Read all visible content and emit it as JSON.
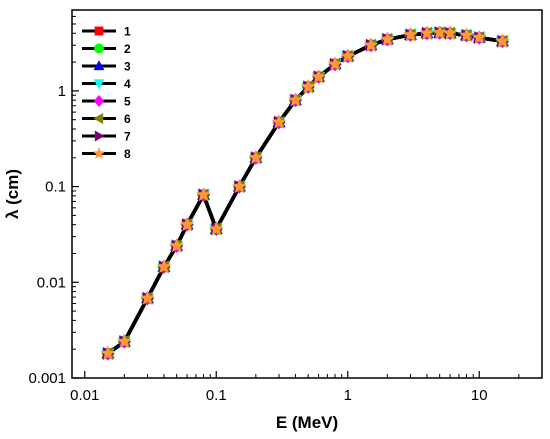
{
  "chart_data": {
    "type": "line",
    "title": "",
    "xlabel": "E (MeV)",
    "ylabel": "λ (cm)",
    "xscale": "log",
    "yscale": "log",
    "xlim": [
      0.008,
      30
    ],
    "ylim": [
      0.001,
      7
    ],
    "xticks": [
      {
        "value": 0.01,
        "label": "0.01"
      },
      {
        "value": 0.1,
        "label": "0.1"
      },
      {
        "value": 1,
        "label": "1"
      },
      {
        "value": 10,
        "label": "10"
      }
    ],
    "yticks": [
      {
        "value": 0.001,
        "label": "0.001"
      },
      {
        "value": 0.01,
        "label": "0.01"
      },
      {
        "value": 0.1,
        "label": "0.1"
      },
      {
        "value": 1,
        "label": "1"
      }
    ],
    "legend_position": "top-left",
    "line_color": "#000000",
    "x": [
      0.015,
      0.02,
      0.03,
      0.04,
      0.05,
      0.06,
      0.08,
      0.1,
      0.15,
      0.2,
      0.3,
      0.4,
      0.5,
      0.6,
      0.8,
      1,
      1.5,
      2,
      3,
      4,
      5,
      6,
      8,
      10,
      15
    ],
    "series": [
      {
        "name": "1",
        "marker": "square",
        "color": "#ff0000",
        "values": [
          0.0018,
          0.0024,
          0.0068,
          0.0145,
          0.024,
          0.04,
          0.082,
          0.036,
          0.1,
          0.2,
          0.47,
          0.8,
          1.1,
          1.4,
          1.9,
          2.3,
          3.0,
          3.45,
          3.85,
          4.0,
          4.05,
          4.0,
          3.8,
          3.6,
          3.3
        ]
      },
      {
        "name": "2",
        "marker": "circle",
        "color": "#00ff00",
        "values": [
          0.0018,
          0.0024,
          0.0068,
          0.0145,
          0.024,
          0.04,
          0.082,
          0.036,
          0.1,
          0.2,
          0.47,
          0.8,
          1.1,
          1.4,
          1.9,
          2.3,
          3.0,
          3.45,
          3.85,
          4.0,
          4.05,
          4.0,
          3.8,
          3.6,
          3.3
        ]
      },
      {
        "name": "3",
        "marker": "triangle-up",
        "color": "#0000ff",
        "values": [
          0.0018,
          0.0024,
          0.0068,
          0.0145,
          0.024,
          0.04,
          0.082,
          0.036,
          0.1,
          0.2,
          0.47,
          0.8,
          1.1,
          1.4,
          1.9,
          2.3,
          3.0,
          3.45,
          3.85,
          4.0,
          4.05,
          4.0,
          3.8,
          3.6,
          3.3
        ]
      },
      {
        "name": "4",
        "marker": "triangle-down",
        "color": "#00ffff",
        "values": [
          0.0018,
          0.0024,
          0.0068,
          0.0145,
          0.024,
          0.04,
          0.082,
          0.036,
          0.1,
          0.2,
          0.47,
          0.8,
          1.1,
          1.4,
          1.9,
          2.3,
          3.0,
          3.45,
          3.85,
          4.0,
          4.05,
          4.0,
          3.8,
          3.6,
          3.3
        ]
      },
      {
        "name": "5",
        "marker": "diamond",
        "color": "#ff00ff",
        "values": [
          0.0018,
          0.0024,
          0.0068,
          0.0145,
          0.024,
          0.04,
          0.082,
          0.036,
          0.1,
          0.2,
          0.47,
          0.8,
          1.1,
          1.4,
          1.9,
          2.3,
          3.0,
          3.45,
          3.85,
          4.0,
          4.05,
          4.0,
          3.8,
          3.6,
          3.3
        ]
      },
      {
        "name": "6",
        "marker": "triangle-left",
        "color": "#808000",
        "values": [
          0.0018,
          0.0024,
          0.0068,
          0.0145,
          0.024,
          0.04,
          0.082,
          0.036,
          0.1,
          0.2,
          0.47,
          0.8,
          1.1,
          1.4,
          1.9,
          2.3,
          3.0,
          3.45,
          3.85,
          4.0,
          4.05,
          4.0,
          3.8,
          3.6,
          3.3
        ]
      },
      {
        "name": "7",
        "marker": "triangle-right",
        "color": "#800080",
        "values": [
          0.0018,
          0.0024,
          0.0068,
          0.0145,
          0.024,
          0.04,
          0.082,
          0.036,
          0.1,
          0.2,
          0.47,
          0.8,
          1.1,
          1.4,
          1.9,
          2.3,
          3.0,
          3.45,
          3.85,
          4.0,
          4.05,
          4.0,
          3.8,
          3.6,
          3.3
        ]
      },
      {
        "name": "8",
        "marker": "star",
        "color": "#ff9933",
        "values": [
          0.0018,
          0.0024,
          0.0068,
          0.0145,
          0.024,
          0.04,
          0.082,
          0.036,
          0.1,
          0.2,
          0.47,
          0.8,
          1.1,
          1.4,
          1.9,
          2.3,
          3.0,
          3.45,
          3.85,
          4.0,
          4.05,
          4.0,
          3.8,
          3.6,
          3.3
        ]
      }
    ]
  }
}
